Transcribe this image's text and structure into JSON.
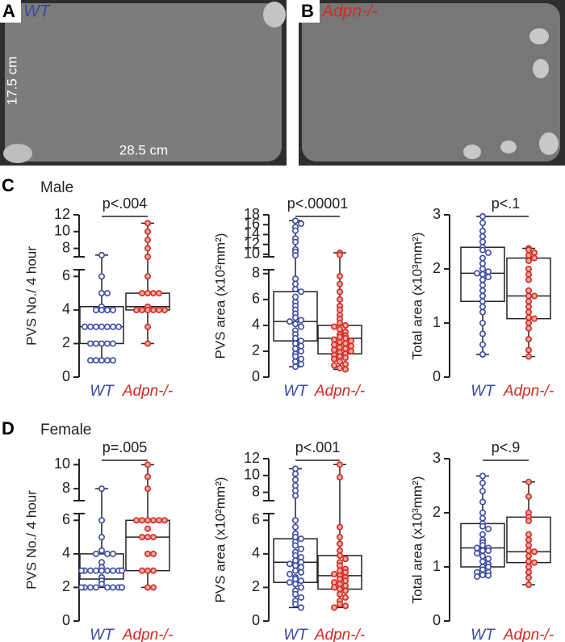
{
  "panel_A": {
    "letter": "A",
    "label": "WT",
    "height_label": "17.5 cm",
    "width_label": "28.5 cm"
  },
  "panel_B": {
    "letter": "B",
    "label": "Adpn-/-"
  },
  "panel_C": {
    "letter": "C",
    "title": "Male"
  },
  "panel_D": {
    "letter": "D",
    "title": "Female"
  },
  "chart_data": [
    {
      "type": "box",
      "ylabel": "PVS No./ 4 hour",
      "annotation": "p<.004",
      "categories": [
        "WT",
        "Adpn-/-"
      ],
      "ylim": [
        0,
        6.4
      ],
      "yticks": [
        0,
        2,
        4,
        6
      ],
      "upper_ylim": [
        7,
        12
      ],
      "upper_yticks": [
        8,
        10,
        12
      ],
      "groups": [
        {
          "color": "#3b4aa0",
          "stats": [
            1,
            2,
            3,
            4.2,
            7.2
          ],
          "points": [
            7.2,
            6,
            5,
            5,
            4.2,
            4,
            4,
            4,
            4,
            3,
            3,
            3,
            3,
            3,
            3,
            3,
            2,
            2,
            2,
            2,
            2,
            1,
            1,
            1,
            1,
            1
          ]
        },
        {
          "color": "#d42a20",
          "stats": [
            2,
            4,
            4.2,
            5,
            11
          ],
          "points": [
            11,
            10,
            9,
            8,
            7,
            6,
            5,
            5,
            5,
            5,
            4.2,
            4,
            4,
            4,
            4,
            4,
            4,
            3,
            2
          ]
        }
      ]
    },
    {
      "type": "box",
      "ylabel": "PVS area (x10²mm²)",
      "annotation": "p<.00001",
      "categories": [
        "WT",
        "Adpn-/-"
      ],
      "ylim": [
        0,
        8.3
      ],
      "yticks": [
        0,
        2,
        4,
        6,
        8
      ],
      "upper_ylim": [
        9.5,
        18
      ],
      "upper_yticks": [
        10,
        12,
        14,
        16,
        18
      ],
      "groups": [
        {
          "color": "#3b4aa0",
          "stats": [
            0.8,
            2.8,
            4.3,
            6.6,
            16.8
          ],
          "points": [
            16.8,
            16.2,
            15.5,
            14.8,
            13.2,
            12.5,
            11,
            10.5,
            9.8,
            7.6,
            7.2,
            6.8,
            6.6,
            6.2,
            5.8,
            5.5,
            5.2,
            4.9,
            4.6,
            4.4,
            4.3,
            4.1,
            3.9,
            3.6,
            3.3,
            3.0,
            2.8,
            2.6,
            2.4,
            2.2,
            2.0,
            1.8,
            1.6,
            1.4,
            1.2,
            1.0,
            0.8
          ]
        },
        {
          "color": "#d42a20",
          "stats": [
            0.6,
            1.8,
            3,
            4,
            10.3
          ],
          "points": [
            10.3,
            9.9,
            7.8,
            7.2,
            6.6,
            6.0,
            5.5,
            5.2,
            4.8,
            4.5,
            4.2,
            4.0,
            3.9,
            3.7,
            3.5,
            3.3,
            3.2,
            3.1,
            3.0,
            2.9,
            2.8,
            2.7,
            2.6,
            2.5,
            2.4,
            2.3,
            2.2,
            2.1,
            2.0,
            1.9,
            1.8,
            1.7,
            1.6,
            1.5,
            1.4,
            1.2,
            1.0,
            0.9,
            0.7,
            0.6
          ]
        }
      ]
    },
    {
      "type": "box",
      "ylabel": "Total area (x10³mm²)",
      "annotation": "p<.1",
      "categories": [
        "WT",
        "Adpn-/-"
      ],
      "ylim": [
        0,
        3
      ],
      "yticks": [
        0,
        1,
        2,
        3
      ],
      "groups": [
        {
          "color": "#3b4aa0",
          "stats": [
            0.42,
            1.4,
            1.92,
            2.4,
            2.97
          ],
          "points": [
            2.97,
            2.85,
            2.7,
            2.6,
            2.5,
            2.4,
            2.35,
            2.3,
            2.2,
            2.1,
            2.0,
            1.95,
            1.92,
            1.9,
            1.85,
            1.8,
            1.7,
            1.6,
            1.5,
            1.4,
            1.3,
            1.2,
            1.0,
            0.8,
            0.6,
            0.42
          ]
        },
        {
          "color": "#d42a20",
          "stats": [
            0.38,
            1.08,
            1.5,
            2.2,
            2.38
          ],
          "points": [
            2.38,
            2.35,
            2.3,
            2.25,
            2.2,
            2.15,
            2.0,
            1.9,
            1.8,
            1.6,
            1.5,
            1.5,
            1.4,
            1.3,
            1.2,
            1.1,
            1.08,
            1.0,
            0.9,
            0.7,
            0.5,
            0.38
          ]
        }
      ]
    },
    {
      "type": "box",
      "ylabel": "PVS No./ 4 hour",
      "annotation": "p=.005",
      "categories": [
        "WT",
        "Adpn-/-"
      ],
      "ylim": [
        0,
        6.4
      ],
      "yticks": [
        0,
        2,
        4,
        6
      ],
      "upper_ylim": [
        7,
        10.5
      ],
      "upper_yticks": [
        8,
        10
      ],
      "groups": [
        {
          "color": "#3b4aa0",
          "stats": [
            2,
            2.5,
            3,
            4,
            8
          ],
          "points": [
            8,
            6,
            5,
            4.2,
            4,
            4,
            4,
            3.5,
            3.2,
            3,
            3,
            3,
            3,
            3,
            3,
            3,
            3,
            3,
            2.6,
            2.4,
            2.2,
            2,
            2,
            2,
            2,
            2,
            2,
            2,
            2,
            2
          ]
        },
        {
          "color": "#d42a20",
          "stats": [
            2,
            3,
            5,
            6,
            10
          ],
          "points": [
            10,
            9,
            8,
            6,
            6,
            6,
            6,
            6,
            6,
            5.5,
            5,
            5,
            5,
            4,
            4,
            3,
            3,
            3,
            2,
            2
          ]
        }
      ]
    },
    {
      "type": "box",
      "ylabel": "PVS area (x10²mm²)",
      "annotation": "p<.001",
      "categories": [
        "WT",
        "Adpn-/-"
      ],
      "ylim": [
        0,
        6.4
      ],
      "yticks": [
        0,
        2,
        4,
        6
      ],
      "upper_ylim": [
        7,
        12
      ],
      "upper_yticks": [
        8,
        10,
        12
      ],
      "groups": [
        {
          "color": "#3b4aa0",
          "stats": [
            0.8,
            2.3,
            3.5,
            4.9,
            10.8
          ],
          "points": [
            10.8,
            10.2,
            9.5,
            8.8,
            8.2,
            7.6,
            6.0,
            5.6,
            5.2,
            5.0,
            4.9,
            4.7,
            4.5,
            4.3,
            4.1,
            3.9,
            3.8,
            3.6,
            3.5,
            3.4,
            3.3,
            3.2,
            3.0,
            2.9,
            2.8,
            2.6,
            2.5,
            2.4,
            2.3,
            2.2,
            2.0,
            1.8,
            1.6,
            1.4,
            1.2,
            1.0,
            0.8
          ]
        },
        {
          "color": "#d42a20",
          "stats": [
            0.8,
            1.9,
            2.7,
            3.9,
            11.3
          ],
          "points": [
            11.3,
            9.8,
            5.6,
            5.0,
            4.6,
            4.2,
            3.9,
            3.7,
            3.5,
            3.3,
            3.1,
            3.0,
            2.9,
            2.8,
            2.7,
            2.6,
            2.5,
            2.4,
            2.3,
            2.2,
            2.1,
            2.0,
            1.9,
            1.8,
            1.6,
            1.4,
            1.2,
            1.0,
            0.9,
            0.8
          ]
        }
      ]
    },
    {
      "type": "box",
      "ylabel": "Total area (x10³mm²)",
      "annotation": "p<.9",
      "categories": [
        "WT",
        "Adpn-/-"
      ],
      "ylim": [
        0,
        3
      ],
      "yticks": [
        0,
        1,
        2,
        3
      ],
      "groups": [
        {
          "color": "#3b4aa0",
          "stats": [
            0.82,
            1.0,
            1.35,
            1.8,
            2.68
          ],
          "points": [
            2.68,
            2.55,
            2.4,
            2.2,
            2.0,
            1.9,
            1.8,
            1.75,
            1.7,
            1.6,
            1.5,
            1.45,
            1.4,
            1.35,
            1.35,
            1.3,
            1.3,
            1.25,
            1.2,
            1.15,
            1.1,
            1.05,
            1.0,
            1.0,
            0.95,
            0.9,
            0.9,
            0.85,
            0.84,
            0.82
          ]
        },
        {
          "color": "#d42a20",
          "stats": [
            0.67,
            1.08,
            1.28,
            1.92,
            2.57
          ],
          "points": [
            2.57,
            2.3,
            2.0,
            1.92,
            1.85,
            1.6,
            1.5,
            1.4,
            1.3,
            1.28,
            1.2,
            1.1,
            1.08,
            1.0,
            0.9,
            0.8,
            0.67
          ]
        }
      ]
    }
  ]
}
